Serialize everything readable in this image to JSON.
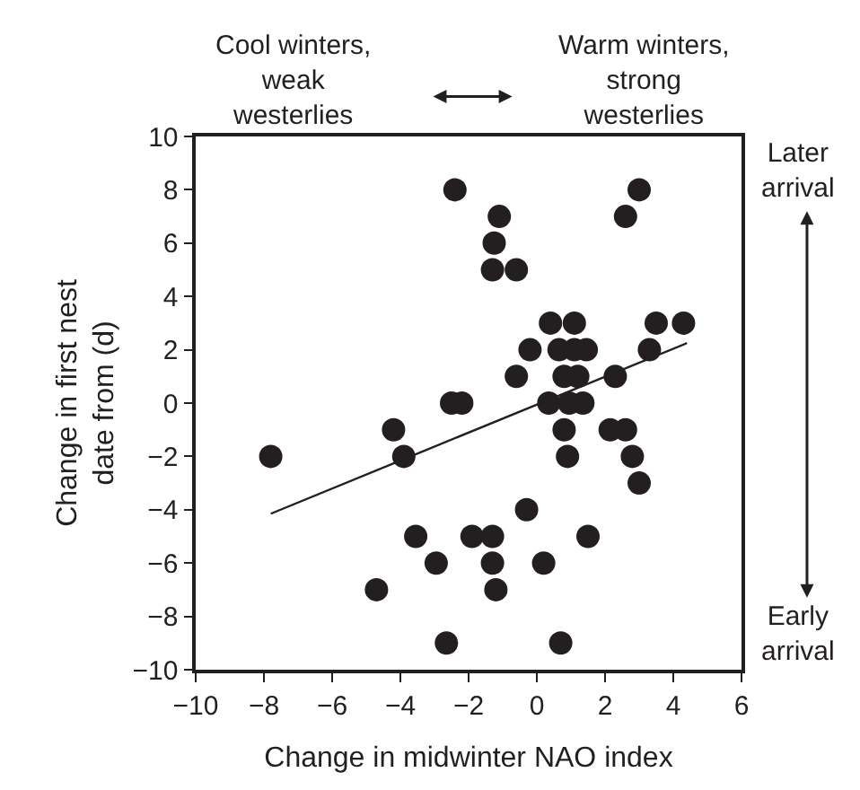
{
  "chart_data": {
    "type": "scatter",
    "xlabel": "Change in midwinter NAO index",
    "ylabel": "Change in first nest\ndate from (d)",
    "xlim": [
      -10,
      6
    ],
    "xticks": [
      {
        "value": -10,
        "label": "−10"
      },
      {
        "value": -8,
        "label": "−8"
      },
      {
        "value": -6,
        "label": "−6"
      },
      {
        "value": -4,
        "label": "−4"
      },
      {
        "value": -2,
        "label": "−2"
      },
      0,
      2,
      4,
      6
    ],
    "ylim": [
      -10,
      10
    ],
    "yticks": [
      {
        "value": -10,
        "label": "−10"
      },
      {
        "value": -8,
        "label": "−8"
      },
      {
        "value": -6,
        "label": "−6"
      },
      {
        "value": -4,
        "label": "−4"
      },
      {
        "value": -2,
        "label": "−2"
      },
      0,
      2,
      4,
      6,
      8,
      10
    ],
    "marker": "circle",
    "series": [
      {
        "color": "#231f20",
        "x": [
          -2.4,
          -1.1,
          -1.25,
          -1.3,
          -0.6,
          3.0,
          2.6,
          0.4,
          1.1,
          3.5,
          4.3,
          -0.2,
          0.65,
          1.1,
          1.45,
          3.3,
          -0.6,
          0.8,
          1.2,
          2.3,
          -2.5,
          -2.2,
          0.35,
          0.95,
          1.35,
          0.8,
          2.15,
          2.6,
          0.9,
          2.8,
          3.0,
          -0.3,
          -1.9,
          -1.3,
          1.5,
          -2.95,
          -1.3,
          0.2,
          -1.2,
          -2.65,
          0.7,
          -7.8,
          -4.2,
          -3.9,
          -3.55,
          -4.7
        ],
        "values": [
          8,
          7,
          6,
          5,
          5,
          8,
          7,
          3,
          3,
          3,
          3,
          2,
          2,
          2,
          2,
          2,
          1,
          1,
          1,
          1,
          0,
          0,
          0,
          0,
          0,
          -1,
          -1,
          -1,
          -2,
          -2,
          -3,
          -4,
          -5,
          -5,
          -5,
          -6,
          -6,
          -6,
          -7,
          -9,
          -9,
          -2,
          -1,
          -2,
          -5,
          -7
        ]
      },
      {
        "type": "line",
        "marker": "none",
        "color": "#231f20",
        "x": [
          -7.8,
          4.4
        ],
        "values": [
          -4.15,
          2.25
        ]
      }
    ],
    "annotations": [
      "Cool winters,\nweak\nwesterlies",
      "Warm winters,\nstrong\nwesterlies",
      "Later\narrival",
      "Early\narrival"
    ]
  }
}
